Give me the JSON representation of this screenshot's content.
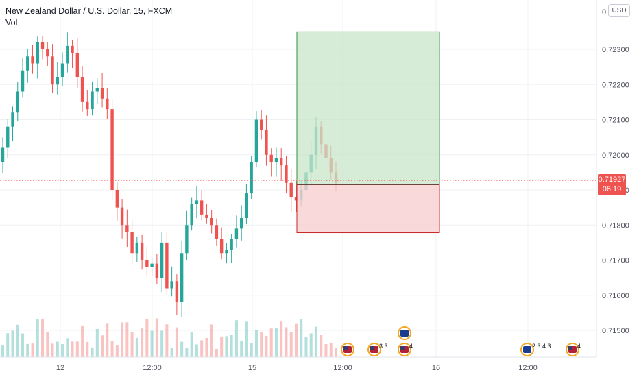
{
  "header": {
    "symbol_title": "New Zealand Dollar / U.S. Dollar, 15, FXCM",
    "volume_label": "Vol",
    "currency_button": "USD"
  },
  "price_axis": {
    "top_partial_label": "0",
    "labels": [
      "0.72300",
      "0.72200",
      "0.72100",
      "0.72000",
      "0.71900",
      "0.71800",
      "0.71700",
      "0.71600",
      "0.71500"
    ]
  },
  "last_price": {
    "value": "0.71927",
    "countdown": "06:19",
    "color": "#ef5350"
  },
  "time_axis": {
    "labels": [
      "12",
      "12:00",
      "15",
      "12:00",
      "16",
      "12:00"
    ]
  },
  "event_badges": [
    "3 3",
    "4",
    "2 3 4 3",
    "4"
  ],
  "colors": {
    "up": "#26a69a",
    "down": "#ef5350",
    "profit_zone": "#c8e6c9",
    "loss_zone": "#f8d0d0"
  },
  "chart_data": {
    "type": "candlestick",
    "symbol": "NZDUSD",
    "interval": "15",
    "ylim": [
      0.7144,
      0.7243
    ],
    "candles_close_approx": [
      0.7202,
      0.7208,
      0.7212,
      0.7218,
      0.7224,
      0.7228,
      0.7226,
      0.7232,
      0.723,
      0.7228,
      0.722,
      0.7222,
      0.7226,
      0.7231,
      0.7229,
      0.7222,
      0.7215,
      0.7213,
      0.7218,
      0.7219,
      0.7216,
      0.7213,
      0.719,
      0.7185,
      0.718,
      0.7178,
      0.7172,
      0.7175,
      0.717,
      0.7168,
      0.7169,
      0.7165,
      0.7175,
      0.7162,
      0.7164,
      0.7158,
      0.7172,
      0.718,
      0.7186,
      0.7187,
      0.7183,
      0.7182,
      0.718,
      0.7176,
      0.7172,
      0.7173,
      0.7176,
      0.7179,
      0.7182,
      0.7189,
      0.7198,
      0.721,
      0.7207,
      0.72,
      0.7198,
      0.7199,
      0.7197,
      0.7192,
      0.7188,
      0.7187,
      0.719,
      0.7195,
      0.72,
      0.7208,
      0.7203,
      0.7199,
      0.7195,
      0.7192
    ],
    "position": {
      "entry": 0.71915,
      "target": 0.7235,
      "stop": 0.71778
    },
    "last_price": 0.71927
  }
}
